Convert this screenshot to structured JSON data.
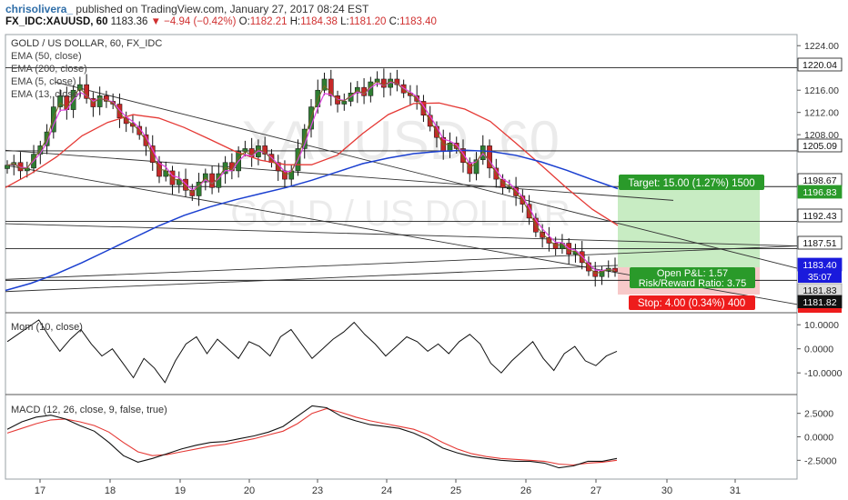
{
  "header": {
    "username": "chrisolivera_",
    "published": "published on TradingView.com, January 27, 2017 08:24 EST",
    "symbol": "FX_IDC:XAUUSD, 60",
    "last": "1183.36",
    "change": "▼ −4.94 (−0.42%)",
    "o_label": "O:",
    "o": "1182.21",
    "h_label": "H:",
    "h": "1184.38",
    "l_label": "L:",
    "l": "1181.20",
    "c_label": "C:",
    "c": "1183.40"
  },
  "main_pane": {
    "legend_title": "GOLD / US DOLLAR, 60, FX_IDC",
    "indicators": [
      "EMA (50, close)",
      "EMA (200, close)",
      "EMA (5, close)",
      "EMA (13, close)"
    ],
    "watermark_symbol": "XAUUSD, 60",
    "watermark_name": "GOLD / US DOLLAR",
    "target_label": "Target: 15.00 (1.27%) 1500",
    "stop_label": "Stop: 4.00 (0.34%) 400",
    "pnl_label": "Open P&L: 1.57",
    "rr_label": "Risk/Reward Ratio: 3.75",
    "countdown": "35:07"
  },
  "mom_pane": {
    "legend": "Mom (10, close)"
  },
  "macd_pane": {
    "legend": "MACD (12, 26, close, 9, false, true)"
  },
  "colors": {
    "up": "#2f7d32",
    "down": "#c62828",
    "ema50": "#e53935",
    "ema200": "#1a3fd0",
    "ema5": "#7a6a1e",
    "ema13": "#e040e0",
    "target_bg": "#c8ecc3",
    "stop_bg": "#f7c9c9",
    "target_tag": "#2a9a2a",
    "stop_tag": "#ee1c1c",
    "price_tag": "#1a1adc"
  },
  "chart_data": [
    {
      "type": "candlestick",
      "title": "GOLD / US DOLLAR, 60, FX_IDC",
      "x_ticks": [
        "17",
        "18",
        "19",
        "20",
        "23",
        "24",
        "25",
        "26",
        "27",
        "30",
        "31"
      ],
      "y_ticks": [
        1224.0,
        1220.04,
        1216.0,
        1212.0,
        1208.0,
        1205.09,
        1198.67,
        1196.83,
        1192.43,
        1187.51,
        1183.4,
        1181.83,
        1181.82
      ],
      "ylim": [
        1176,
        1226
      ],
      "series": [
        {
          "name": "Price",
          "values": [
            1202.5,
            1203,
            1201.5,
            1202,
            1204.5,
            1206,
            1208.5,
            1213,
            1215,
            1212.5,
            1216,
            1217,
            1214.5,
            1213,
            1215,
            1214,
            1213.5,
            1211,
            1210,
            1209.5,
            1208,
            1206,
            1203,
            1200.5,
            1201.5,
            1199,
            1200,
            1198,
            1197,
            1199.5,
            1201,
            1198.5,
            1201,
            1203,
            1201.5,
            1205,
            1205.5,
            1204,
            1206,
            1204.5,
            1203,
            1201.5,
            1200,
            1201.5,
            1205.5,
            1209,
            1213,
            1216,
            1218,
            1215,
            1213.5,
            1214,
            1215.5,
            1216.5,
            1215,
            1217.5,
            1218,
            1216.5,
            1218,
            1217,
            1215.5,
            1215,
            1214,
            1211.5,
            1209.5,
            1207.5,
            1205,
            1206.5,
            1205.5,
            1203,
            1201,
            1203.5,
            1206,
            1202,
            1200,
            1198.5,
            1198.5,
            1197,
            1195.5,
            1193,
            1190.5,
            1189.5,
            1188.5,
            1187.5,
            1188.5,
            1186.5,
            1187,
            1185,
            1183.5,
            1182.5,
            1183.5,
            1184,
            1183.36
          ]
        },
        {
          "name": "EMA (50, close)",
          "values": [
            1198.5,
            1201,
            1204,
            1207.8,
            1210.2,
            1211.6,
            1211,
            1209.3,
            1207.2,
            1205,
            1203.4,
            1202.6,
            1202.6,
            1204.3,
            1208.2,
            1211.6,
            1213.6,
            1213.7,
            1212.6,
            1210.4,
            1206.5,
            1202.5,
            1198.4,
            1194.6,
            1191.7
          ]
        },
        {
          "name": "EMA (200, close)",
          "values": [
            1180,
            1181.3,
            1183,
            1185,
            1187.2,
            1189.4,
            1191.6,
            1193.5,
            1195,
            1196.3,
            1197.4,
            1198.5,
            1199.8,
            1201.3,
            1202.8,
            1203.8,
            1204.6,
            1205,
            1205.2,
            1205,
            1204.3,
            1203.1,
            1201.6,
            1199.9,
            1198.3
          ]
        }
      ],
      "trade": {
        "entry": 1181.82,
        "target": 1196.83,
        "stop": 1177.82,
        "last": 1183.4
      }
    },
    {
      "type": "line",
      "title": "Mom (10, close)",
      "y_ticks": [
        10.0,
        0.0,
        -10.0
      ],
      "ylim": [
        -19,
        15
      ],
      "series": [
        {
          "name": "Mom (10, close)",
          "values": [
            3,
            6,
            9,
            12,
            5,
            -1,
            4,
            8,
            2,
            -3,
            0,
            -6,
            -12,
            -4,
            -8,
            -14,
            -5,
            2,
            5,
            -2,
            4,
            0,
            -4,
            3,
            1,
            -3,
            5,
            8,
            2,
            -4,
            0,
            4,
            7,
            11,
            6,
            2,
            -3,
            1,
            5,
            3,
            -1,
            2,
            -2,
            3,
            6,
            2,
            -6,
            -10,
            -5,
            -1,
            3,
            -4,
            -9,
            -2,
            1,
            -5,
            -7,
            -3,
            -1
          ]
        }
      ]
    },
    {
      "type": "line",
      "title": "MACD (12, 26, close, 9, false, true)",
      "y_ticks": [
        2.5,
        0.0,
        -2.5
      ],
      "ylim": [
        -4.5,
        4.5
      ],
      "series": [
        {
          "name": "MACD",
          "values": [
            0.8,
            1.6,
            2.1,
            2.3,
            1.9,
            1.2,
            0.6,
            -0.6,
            -2,
            -2.7,
            -2.3,
            -1.8,
            -1.3,
            -0.9,
            -0.6,
            -0.5,
            -0.2,
            0.1,
            0.5,
            1.1,
            2.2,
            3.3,
            3.1,
            2.2,
            1.7,
            1.3,
            1.1,
            0.9,
            0.4,
            -0.3,
            -1.2,
            -1.7,
            -2.1,
            -2.3,
            -2.5,
            -2.6,
            -2.6,
            -2.8,
            -3.3,
            -3.1,
            -2.6,
            -2.6,
            -2.3
          ]
        },
        {
          "name": "Signal",
          "values": [
            0.4,
            0.9,
            1.4,
            1.8,
            1.9,
            1.6,
            1.2,
            0.5,
            -0.6,
            -1.6,
            -2,
            -1.9,
            -1.6,
            -1.3,
            -1,
            -0.8,
            -0.5,
            -0.2,
            0.2,
            0.6,
            1.4,
            2.5,
            3,
            2.6,
            2.1,
            1.7,
            1.4,
            1.1,
            0.8,
            0.2,
            -0.6,
            -1.3,
            -1.8,
            -2.1,
            -2.3,
            -2.4,
            -2.5,
            -2.6,
            -2.9,
            -3,
            -2.8,
            -2.7,
            -2.5
          ]
        }
      ]
    }
  ]
}
